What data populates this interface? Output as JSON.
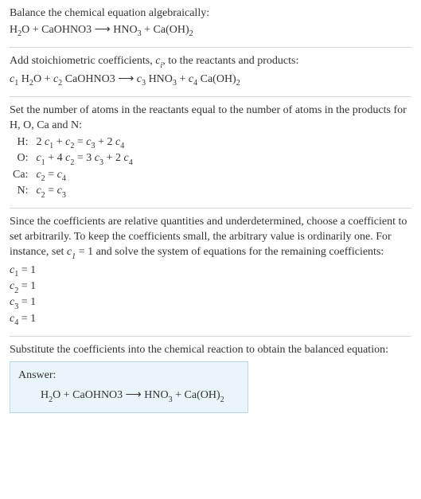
{
  "colors": {
    "text": "#333333",
    "rule": "#d8d8d8",
    "answer_bg": "#eaf5fb",
    "answer_border": "#b9d8e8"
  },
  "font": {
    "family": "Georgia, Times New Roman, serif",
    "size_pt": 11
  },
  "section1": {
    "line1": "Balance the chemical equation algebraically:",
    "eq": {
      "left": [
        {
          "type": "formula",
          "tokens": [
            "H",
            {
              "sub": "2"
            },
            "O"
          ]
        },
        " + ",
        {
          "type": "formula",
          "tokens": [
            "CaOHNO3"
          ]
        }
      ],
      "arrow": "⟶",
      "right": [
        {
          "type": "formula",
          "tokens": [
            "HNO",
            {
              "sub": "3"
            }
          ]
        },
        " + ",
        {
          "type": "formula",
          "tokens": [
            "Ca(OH)",
            {
              "sub": "2"
            }
          ]
        }
      ]
    }
  },
  "section2": {
    "text_a": "Add stoichiometric coefficients, ",
    "coef_sym": {
      "base": "c",
      "sub": "i"
    },
    "text_b": ", to the reactants and products:",
    "eq": {
      "c1": {
        "base": "c",
        "sub": "1"
      },
      "t1": {
        "tokens": [
          "H",
          {
            "sub": "2"
          },
          "O"
        ]
      },
      "plus1": " + ",
      "c2": {
        "base": "c",
        "sub": "2"
      },
      "t2": {
        "tokens": [
          "CaOHNO3"
        ]
      },
      "arrow": "⟶",
      "c3": {
        "base": "c",
        "sub": "3"
      },
      "t3": {
        "tokens": [
          "HNO",
          {
            "sub": "3"
          }
        ]
      },
      "plus2": " + ",
      "c4": {
        "base": "c",
        "sub": "4"
      },
      "t4": {
        "tokens": [
          "Ca(OH)",
          {
            "sub": "2"
          }
        ]
      }
    }
  },
  "section3": {
    "intro": "Set the number of atoms in the reactants equal to the number of atoms in the products for H, O, Ca and N:",
    "rows": [
      {
        "label": "H:",
        "lhs": [
          {
            "n": "2 ",
            "c": {
              "base": "c",
              "sub": "1"
            }
          },
          {
            "plus": " + "
          },
          {
            "c": {
              "base": "c",
              "sub": "2"
            }
          }
        ],
        "eq": " = ",
        "rhs": [
          {
            "c": {
              "base": "c",
              "sub": "3"
            }
          },
          {
            "plus": " + "
          },
          {
            "n": "2 ",
            "c": {
              "base": "c",
              "sub": "4"
            }
          }
        ]
      },
      {
        "label": "O:",
        "lhs": [
          {
            "c": {
              "base": "c",
              "sub": "1"
            }
          },
          {
            "plus": " + "
          },
          {
            "n": "4 ",
            "c": {
              "base": "c",
              "sub": "2"
            }
          }
        ],
        "eq": " = ",
        "rhs": [
          {
            "n": "3 ",
            "c": {
              "base": "c",
              "sub": "3"
            }
          },
          {
            "plus": " + "
          },
          {
            "n": "2 ",
            "c": {
              "base": "c",
              "sub": "4"
            }
          }
        ]
      },
      {
        "label": "Ca:",
        "lhs": [
          {
            "c": {
              "base": "c",
              "sub": "2"
            }
          }
        ],
        "eq": " = ",
        "rhs": [
          {
            "c": {
              "base": "c",
              "sub": "4"
            }
          }
        ]
      },
      {
        "label": "N:",
        "lhs": [
          {
            "c": {
              "base": "c",
              "sub": "2"
            }
          }
        ],
        "eq": " = ",
        "rhs": [
          {
            "c": {
              "base": "c",
              "sub": "3"
            }
          }
        ]
      }
    ]
  },
  "section4": {
    "para_a": "Since the coefficients are relative quantities and underdetermined, choose a coefficient to set arbitrarily. To keep the coefficients small, the arbitrary value is ordinarily one. For instance, set ",
    "c1": {
      "base": "c",
      "sub": "1"
    },
    "para_b": " = 1 and solve the system of equations for the remaining coefficients:",
    "results": [
      {
        "c": {
          "base": "c",
          "sub": "1"
        },
        "val": " = 1"
      },
      {
        "c": {
          "base": "c",
          "sub": "2"
        },
        "val": " = 1"
      },
      {
        "c": {
          "base": "c",
          "sub": "3"
        },
        "val": " = 1"
      },
      {
        "c": {
          "base": "c",
          "sub": "4"
        },
        "val": " = 1"
      }
    ]
  },
  "section5": {
    "text": "Substitute the coefficients into the chemical reaction to obtain the balanced equation:",
    "answer_label": "Answer:",
    "eq": {
      "left": [
        {
          "type": "formula",
          "tokens": [
            "H",
            {
              "sub": "2"
            },
            "O"
          ]
        },
        " + ",
        {
          "type": "formula",
          "tokens": [
            "CaOHNO3"
          ]
        }
      ],
      "arrow": "⟶",
      "right": [
        {
          "type": "formula",
          "tokens": [
            "HNO",
            {
              "sub": "3"
            }
          ]
        },
        " + ",
        {
          "type": "formula",
          "tokens": [
            "Ca(OH)",
            {
              "sub": "2"
            }
          ]
        }
      ]
    }
  }
}
